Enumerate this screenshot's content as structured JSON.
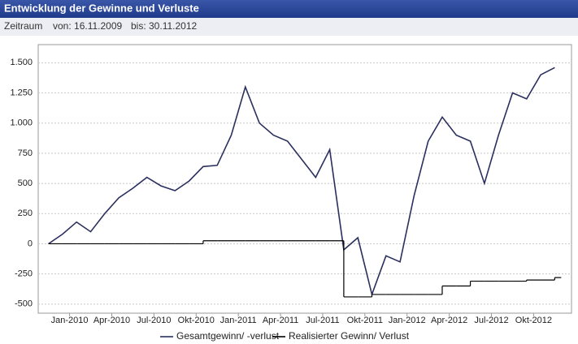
{
  "chart_data": {
    "type": "line",
    "title": "Entwicklung der Gewinne und Verluste",
    "period_label": "Zeitraum",
    "from": "von: 16.11.2009",
    "to": "bis: 30.11.2012",
    "x": [
      "2009-11",
      "2009-12",
      "2010-01",
      "2010-02",
      "2010-03",
      "2010-04",
      "2010-05",
      "2010-06",
      "2010-07",
      "2010-08",
      "2010-09",
      "2010-10",
      "2010-11",
      "2010-12",
      "2011-01",
      "2011-02",
      "2011-03",
      "2011-04",
      "2011-05",
      "2011-06",
      "2011-07",
      "2011-08",
      "2011-09",
      "2011-10",
      "2011-11",
      "2011-12",
      "2012-01",
      "2012-02",
      "2012-03",
      "2012-04",
      "2012-05",
      "2012-06",
      "2012-07",
      "2012-08",
      "2012-09",
      "2012-10",
      "2012-11"
    ],
    "series": [
      {
        "name": "Gesamtgewinn/ -verlust",
        "color": "#2b2f5e",
        "step": false,
        "values": [
          0,
          80,
          180,
          100,
          250,
          380,
          460,
          550,
          480,
          440,
          520,
          640,
          650,
          900,
          1300,
          1000,
          900,
          850,
          700,
          550,
          780,
          -50,
          50,
          -420,
          -100,
          -150,
          400,
          850,
          1050,
          900,
          850,
          500,
          900,
          1250,
          1200,
          1400,
          1460
        ]
      },
      {
        "name": "Realisierter Gewinn/ Verlust",
        "color": "#000000",
        "step": true,
        "values": [
          0,
          0,
          0,
          0,
          0,
          0,
          0,
          0,
          0,
          0,
          0,
          25,
          25,
          25,
          25,
          25,
          25,
          25,
          25,
          25,
          25,
          -440,
          -440,
          -420,
          -420,
          -420,
          -420,
          -420,
          -350,
          -350,
          -310,
          -310,
          -310,
          -310,
          -300,
          -300,
          -280
        ]
      }
    ],
    "xlim": [
      "2009-11",
      "2012-12"
    ],
    "xticks": [
      {
        "value": "2010-01",
        "label": "Jan-2010"
      },
      {
        "value": "2010-04",
        "label": "Apr-2010"
      },
      {
        "value": "2010-07",
        "label": "Jul-2010"
      },
      {
        "value": "2010-10",
        "label": "Okt-2010"
      },
      {
        "value": "2011-01",
        "label": "Jan-2011"
      },
      {
        "value": "2011-04",
        "label": "Apr-2011"
      },
      {
        "value": "2011-07",
        "label": "Jul-2011"
      },
      {
        "value": "2011-10",
        "label": "Okt-2011"
      },
      {
        "value": "2012-01",
        "label": "Jan-2012"
      },
      {
        "value": "2012-04",
        "label": "Apr-2012"
      },
      {
        "value": "2012-07",
        "label": "Jul-2012"
      },
      {
        "value": "2012-10",
        "label": "Okt-2012"
      }
    ],
    "ylim": [
      -575,
      1650
    ],
    "yticks": [
      {
        "value": 1500,
        "label": "1.500"
      },
      {
        "value": 1250,
        "label": "1.250"
      },
      {
        "value": 1000,
        "label": "1.000"
      },
      750,
      500,
      250,
      0,
      -250,
      -500
    ],
    "grid": true
  }
}
